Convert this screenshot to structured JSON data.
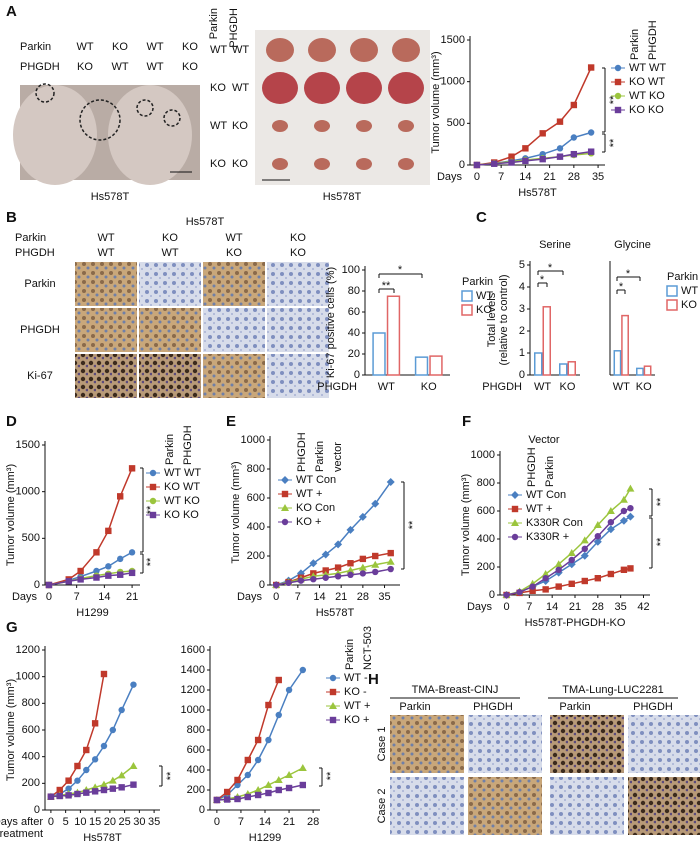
{
  "chart_data": [
    {
      "type": "line",
      "ylabel": "Tumor volume (mm³)",
      "xlabel": "Days",
      "caption": "Hs578T",
      "x": [
        0,
        5,
        10,
        14,
        19,
        24,
        28,
        33
      ],
      "xlim": [
        -2,
        37
      ],
      "xticks": [
        0,
        7,
        14,
        21,
        28,
        35
      ],
      "ylim": [
        0,
        1500
      ],
      "yticks": [
        0,
        500,
        1000,
        1500
      ],
      "legend": "right",
      "legend_header": [
        "Parkin",
        "PHGDH"
      ],
      "series": [
        {
          "name": "WT WT",
          "color": "#4a7fc1",
          "marker": "circle",
          "values": [
            0,
            20,
            50,
            80,
            130,
            200,
            330,
            390
          ]
        },
        {
          "name": "KO WT",
          "color": "#c0392b",
          "marker": "square",
          "values": [
            0,
            30,
            100,
            200,
            380,
            520,
            720,
            1170
          ]
        },
        {
          "name": "WT KO",
          "color": "#9bc53d",
          "marker": "circle",
          "values": [
            0,
            20,
            40,
            60,
            80,
            100,
            120,
            140
          ]
        },
        {
          "name": "KO KO",
          "color": "#6a3d9a",
          "marker": "square",
          "values": [
            0,
            15,
            30,
            50,
            70,
            100,
            130,
            160
          ]
        }
      ],
      "annotations": [
        "**",
        "**"
      ]
    },
    {
      "type": "bar",
      "ylabel": "Ki-67 positive cells (%)",
      "xlabel": "PHGDH",
      "categories": [
        "WT",
        "KO"
      ],
      "ylim": [
        0,
        100
      ],
      "yticks": [
        0,
        20,
        40,
        60,
        80,
        100
      ],
      "legend": "right",
      "legend_title": "Parkin",
      "bar_style": "outline",
      "series": [
        {
          "name": "WT",
          "color": "#5b9bd5",
          "values": [
            40,
            17
          ]
        },
        {
          "name": "KO",
          "color": "#e06666",
          "values": [
            75,
            18
          ]
        }
      ],
      "annotations": [
        "**",
        "*"
      ]
    },
    {
      "type": "bar",
      "title": "Serine",
      "ylabel_lines": [
        "Total levels",
        "(relative to control)"
      ],
      "xlabel": "PHGDH",
      "categories": [
        "WT",
        "KO"
      ],
      "ylim": [
        0,
        5
      ],
      "yticks": [
        0,
        1,
        2,
        3,
        4,
        5
      ],
      "bar_style": "outline",
      "series": [
        {
          "name": "WT",
          "color": "#5b9bd5",
          "values": [
            1.0,
            0.5
          ]
        },
        {
          "name": "KO",
          "color": "#e06666",
          "values": [
            3.1,
            0.6
          ]
        }
      ],
      "annotations": [
        "*",
        "*"
      ]
    },
    {
      "type": "bar",
      "title": "Glycine",
      "categories": [
        "WT",
        "KO"
      ],
      "ylim": [
        0,
        5
      ],
      "legend": "right",
      "legend_title": "Parkin",
      "bar_style": "outline",
      "series": [
        {
          "name": "WT",
          "color": "#5b9bd5",
          "values": [
            1.1,
            0.3
          ]
        },
        {
          "name": "KO",
          "color": "#e06666",
          "values": [
            2.7,
            0.4
          ]
        }
      ],
      "annotations": [
        "*",
        "*"
      ]
    },
    {
      "type": "line",
      "ylabel": "Tumor volume (mm³)",
      "xlabel": "Days",
      "caption": "H1299",
      "x": [
        0,
        5,
        8,
        12,
        15,
        18,
        21
      ],
      "xlim": [
        -1,
        23
      ],
      "xticks": [
        0,
        7,
        14,
        21
      ],
      "ylim": [
        0,
        1500
      ],
      "yticks": [
        0,
        500,
        1000,
        1500
      ],
      "legend": "right",
      "legend_header": [
        "Parkin",
        "PHGDH"
      ],
      "series": [
        {
          "name": "WT WT",
          "color": "#4a7fc1",
          "marker": "circle",
          "values": [
            0,
            50,
            90,
            150,
            200,
            280,
            350
          ]
        },
        {
          "name": "KO WT",
          "color": "#c0392b",
          "marker": "square",
          "values": [
            0,
            60,
            150,
            350,
            580,
            950,
            1250
          ]
        },
        {
          "name": "WT KO",
          "color": "#9bc53d",
          "marker": "circle",
          "values": [
            0,
            40,
            70,
            100,
            120,
            140,
            150
          ]
        },
        {
          "name": "KO KO",
          "color": "#6a3d9a",
          "marker": "square",
          "values": [
            0,
            40,
            60,
            80,
            100,
            110,
            130
          ]
        }
      ],
      "annotations": [
        "**",
        "**"
      ]
    },
    {
      "type": "line",
      "ylabel": "Tumor volume (mm³)",
      "xlabel": "Days",
      "caption": "Hs578T",
      "x": [
        0,
        4,
        8,
        12,
        16,
        20,
        24,
        28,
        32,
        37
      ],
      "xlim": [
        -2,
        40
      ],
      "xticks": [
        0,
        7,
        14,
        21,
        28,
        35
      ],
      "ylim": [
        0,
        1000
      ],
      "yticks": [
        0,
        200,
        400,
        600,
        800,
        1000
      ],
      "legend": "upper left",
      "legend_header": [
        "PHGDH",
        "Parkin",
        "vector"
      ],
      "series": [
        {
          "name": "WT Con",
          "color": "#4a7fc1",
          "marker": "diamond",
          "values": [
            0,
            30,
            80,
            150,
            210,
            280,
            380,
            470,
            560,
            710
          ]
        },
        {
          "name": "WT +",
          "color": "#c0392b",
          "marker": "square",
          "values": [
            0,
            20,
            50,
            80,
            100,
            120,
            150,
            180,
            200,
            220
          ]
        },
        {
          "name": "KO Con",
          "color": "#9bc53d",
          "marker": "triangle",
          "values": [
            0,
            20,
            40,
            60,
            70,
            80,
            100,
            120,
            140,
            160
          ]
        },
        {
          "name": "KO +",
          "color": "#6a3d9a",
          "marker": "circle",
          "values": [
            0,
            15,
            30,
            40,
            50,
            60,
            70,
            80,
            90,
            110
          ]
        }
      ],
      "annotations": [
        "**"
      ]
    },
    {
      "type": "line",
      "ylabel": "Tumor volume (mm³)",
      "xlabel": "Days",
      "caption": "Hs578T-PHGDH-KO",
      "x": [
        0,
        4,
        8,
        12,
        16,
        20,
        24,
        28,
        32,
        36,
        38
      ],
      "xlim": [
        -2,
        44
      ],
      "xticks": [
        0,
        7,
        14,
        21,
        28,
        35,
        42
      ],
      "ylim": [
        0,
        1000
      ],
      "yticks": [
        0,
        200,
        400,
        600,
        800,
        1000
      ],
      "legend": "upper left",
      "legend_caption": "Vector",
      "legend_header": [
        "PHGDH",
        "Parkin"
      ],
      "series": [
        {
          "name": "WT Con",
          "color": "#4a7fc1",
          "marker": "diamond",
          "values": [
            0,
            20,
            60,
            100,
            160,
            220,
            280,
            380,
            470,
            530,
            560
          ]
        },
        {
          "name": "WT +",
          "color": "#c0392b",
          "marker": "square",
          "values": [
            0,
            15,
            30,
            40,
            60,
            80,
            100,
            120,
            150,
            180,
            190
          ]
        },
        {
          "name": "K330R Con",
          "color": "#9bc53d",
          "marker": "triangle",
          "values": [
            0,
            25,
            80,
            150,
            220,
            300,
            390,
            500,
            600,
            680,
            760
          ]
        },
        {
          "name": "K330R +",
          "color": "#6a3d9a",
          "marker": "circle",
          "values": [
            0,
            20,
            60,
            120,
            180,
            250,
            330,
            420,
            520,
            600,
            620
          ]
        }
      ],
      "annotations": [
        "**",
        "**"
      ]
    },
    {
      "type": "line",
      "ylabel": "Tumor volume (mm³)",
      "xlabel_lines": [
        "Days after",
        "treatment"
      ],
      "caption": "Hs578T",
      "x": [
        0,
        3,
        6,
        9,
        12,
        15,
        18,
        21,
        24,
        28
      ],
      "xlim": [
        -2,
        37
      ],
      "xticks": [
        0,
        5,
        10,
        15,
        20,
        25,
        30,
        35
      ],
      "ylim": [
        0,
        1200
      ],
      "yticks": [
        0,
        200,
        400,
        600,
        800,
        1000,
        1200
      ],
      "series": [
        {
          "name": "WT -",
          "color": "#4a7fc1",
          "marker": "circle",
          "values": [
            100,
            120,
            160,
            220,
            300,
            380,
            480,
            600,
            750,
            940
          ]
        },
        {
          "name": "KO -",
          "color": "#c0392b",
          "marker": "square",
          "values": [
            100,
            150,
            220,
            330,
            450,
            650,
            1020,
            null,
            null,
            null
          ]
        },
        {
          "name": "WT +",
          "color": "#9bc53d",
          "marker": "triangle",
          "values": [
            100,
            110,
            120,
            130,
            150,
            170,
            190,
            220,
            260,
            330
          ]
        },
        {
          "name": "KO +",
          "color": "#6a3d9a",
          "marker": "square",
          "values": [
            100,
            105,
            110,
            120,
            130,
            140,
            150,
            160,
            170,
            190
          ]
        }
      ],
      "annotations": [
        "**"
      ]
    },
    {
      "type": "line",
      "caption": "H1299",
      "x": [
        0,
        3,
        6,
        9,
        12,
        15,
        18,
        21,
        25
      ],
      "xlim": [
        -2,
        30
      ],
      "xticks": [
        0,
        7,
        14,
        21,
        28
      ],
      "ylim": [
        0,
        1600
      ],
      "yticks": [
        0,
        200,
        400,
        600,
        800,
        1000,
        1200,
        1400,
        1600
      ],
      "legend": "right",
      "legend_header": [
        "Parkin",
        "NCT-503"
      ],
      "series": [
        {
          "name": "WT -",
          "color": "#4a7fc1",
          "marker": "circle",
          "values": [
            100,
            150,
            250,
            350,
            500,
            700,
            950,
            1200,
            1400
          ]
        },
        {
          "name": "KO -",
          "color": "#c0392b",
          "marker": "square",
          "values": [
            100,
            180,
            300,
            500,
            700,
            1050,
            1300,
            null,
            null
          ]
        },
        {
          "name": "WT +",
          "color": "#9bc53d",
          "marker": "triangle",
          "values": [
            100,
            110,
            130,
            160,
            200,
            250,
            300,
            350,
            420
          ]
        },
        {
          "name": "KO +",
          "color": "#6a3d9a",
          "marker": "square",
          "values": [
            100,
            105,
            110,
            130,
            150,
            170,
            200,
            220,
            250
          ]
        }
      ],
      "annotations": [
        "**"
      ]
    }
  ],
  "figure": {
    "panel_labels": [
      "A",
      "B",
      "C",
      "D",
      "E",
      "F",
      "G",
      "H"
    ],
    "a_mice": {
      "row_labels": [
        "Parkin",
        "PHGDH"
      ],
      "parkin": [
        "WT",
        "KO",
        "WT",
        "KO"
      ],
      "phgdh": [
        "KO",
        "WT",
        "WT",
        "KO"
      ],
      "caption": "Hs578T"
    },
    "a_tumors": {
      "header": [
        "Parkin",
        "PHGDH"
      ],
      "rows": [
        [
          "WT",
          "WT"
        ],
        [
          "KO",
          "WT"
        ],
        [
          "WT",
          "KO"
        ],
        [
          "KO",
          "KO"
        ]
      ],
      "caption": "Hs578T"
    },
    "b_ihc": {
      "title": "Hs578T",
      "row_labels": [
        "Parkin",
        "PHGDH"
      ],
      "parkin": [
        "WT",
        "KO",
        "WT",
        "KO"
      ],
      "phgdh": [
        "WT",
        "WT",
        "KO",
        "KO"
      ],
      "stains": [
        "Parkin",
        "PHGDH",
        "Ki-67"
      ]
    },
    "h_tma": {
      "groups": [
        "TMA-Breast-CINJ",
        "TMA-Lung-LUC2281"
      ],
      "columns": [
        "Parkin",
        "PHGDH",
        "Parkin",
        "PHGDH"
      ],
      "rows": [
        "Case 1",
        "Case 2"
      ]
    }
  }
}
